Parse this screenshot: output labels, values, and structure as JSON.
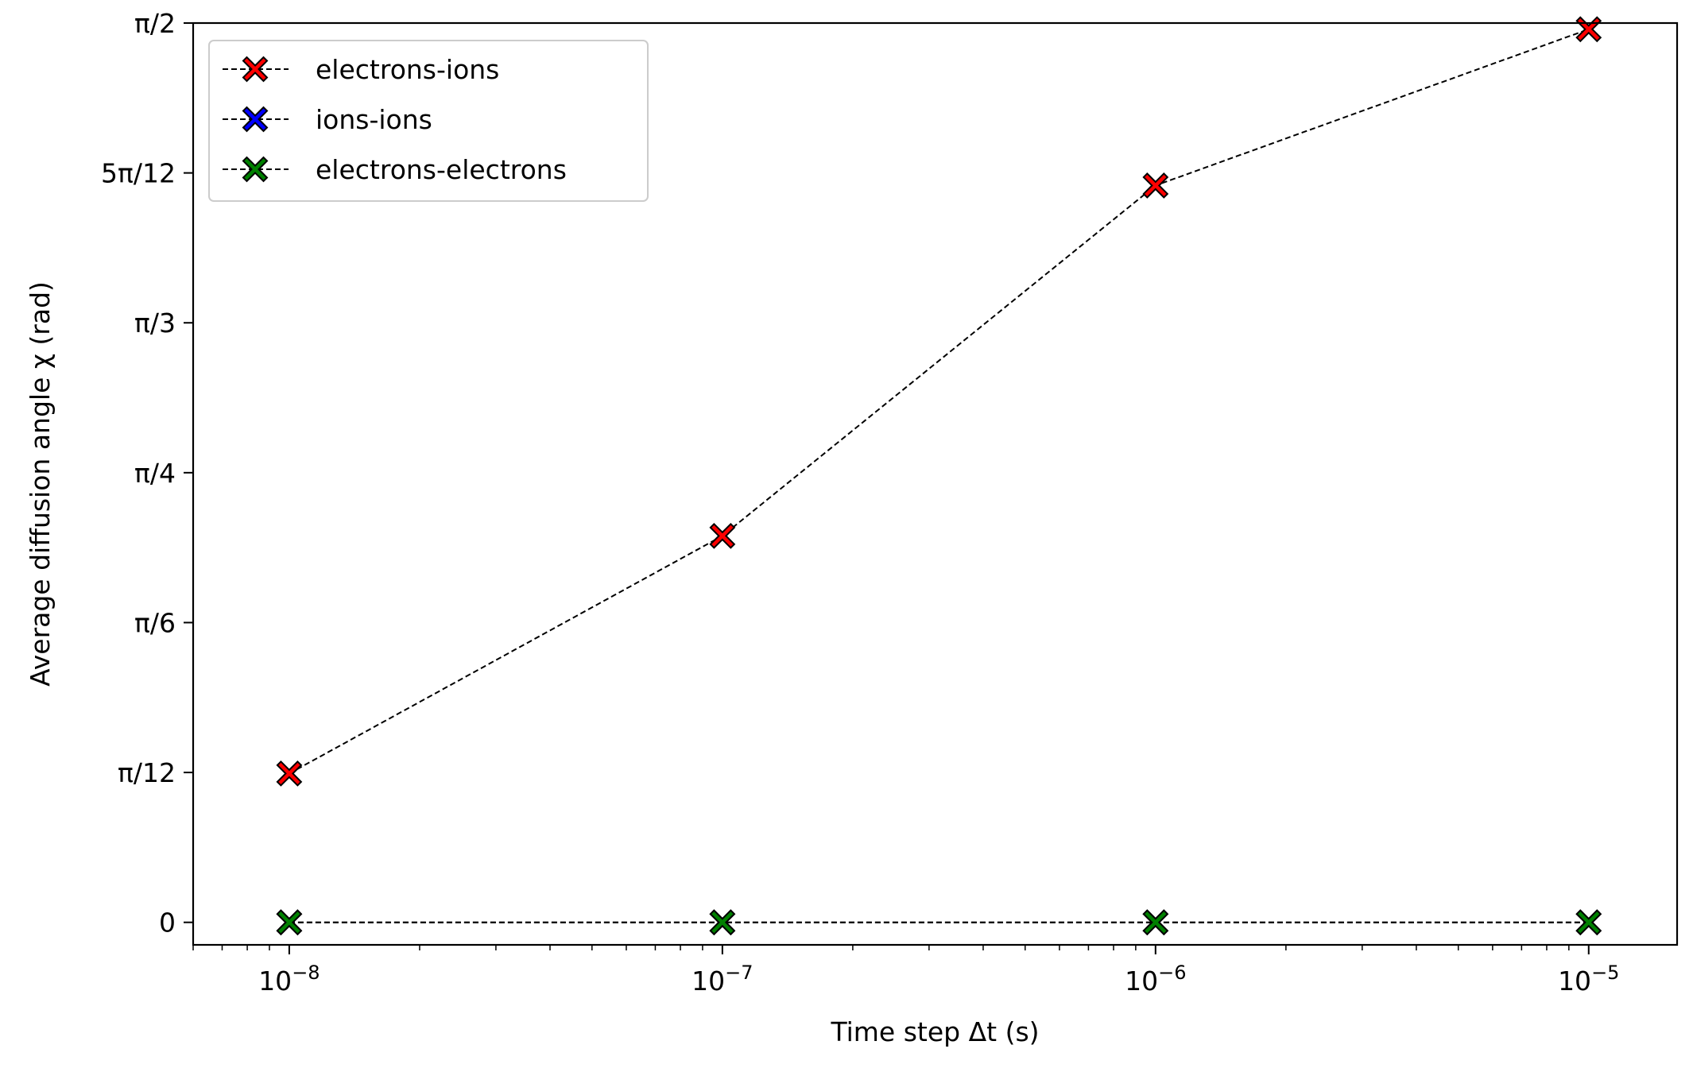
{
  "chart_data": {
    "type": "line",
    "title": "",
    "xlabel": "Time step Δt (s)",
    "ylabel": "Average diffusion angle χ (rad)",
    "xscale": "log",
    "xlim": [
      6e-09,
      1.6e-05
    ],
    "ylim": [
      -0.0393,
      1.5708
    ],
    "grid": false,
    "legend_position": "upper-left",
    "x_ticks": [
      {
        "value": 1e-08,
        "base": "10",
        "exp": "−8"
      },
      {
        "value": 1e-07,
        "base": "10",
        "exp": "−7"
      },
      {
        "value": 1e-06,
        "base": "10",
        "exp": "−6"
      },
      {
        "value": 1e-05,
        "base": "10",
        "exp": "−5"
      }
    ],
    "y_ticks": [
      {
        "value": 0,
        "label": "0"
      },
      {
        "value": 0.2618,
        "label": "π/12"
      },
      {
        "value": 0.5236,
        "label": "π/6"
      },
      {
        "value": 0.7854,
        "label": "π/4"
      },
      {
        "value": 1.0472,
        "label": "π/3"
      },
      {
        "value": 1.309,
        "label": "5π/12"
      },
      {
        "value": 1.5708,
        "label": "π/2"
      }
    ],
    "x": [
      1e-08,
      1e-07,
      1e-06,
      1e-05
    ],
    "series": [
      {
        "name": "electrons-ions",
        "color": "#ff0000",
        "values": [
          0.26,
          0.675,
          1.287,
          1.56
        ]
      },
      {
        "name": "ions-ions",
        "color": "#0000ff",
        "values": [
          0.0,
          0.0,
          0.0,
          0.0
        ]
      },
      {
        "name": "electrons-electrons",
        "color": "#008000",
        "values": [
          0.0,
          0.0,
          0.0,
          0.0
        ]
      }
    ],
    "line_style": "dashed",
    "line_color": "#000000",
    "marker": "X"
  }
}
